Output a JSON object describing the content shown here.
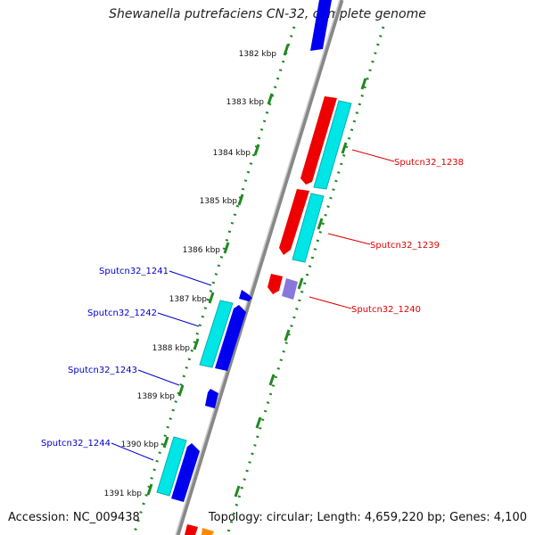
{
  "title": "Shewanella putrefaciens CN-32, complete genome",
  "footer": {
    "accession": "Accession: NC_009438",
    "stats": "Topology: circular; Length: 4,659,220 bp; Genes: 4,100"
  },
  "ticks": [
    "1382 kbp",
    "1383 kbp",
    "1384 kbp",
    "1385 kbp",
    "1386 kbp",
    "1387 kbp",
    "1388 kbp",
    "1389 kbp",
    "1390 kbp",
    "1391 kbp"
  ],
  "gene_labels_right": [
    "Sputcn32_1238",
    "Sputcn32_1239",
    "Sputcn32_1240"
  ],
  "gene_labels_left": [
    "Sputcn32_1241",
    "Sputcn32_1242",
    "Sputcn32_1243",
    "Sputcn32_1244"
  ],
  "colors": {
    "forward_cds": "#ff0000",
    "reverse_cds": "#0000ee",
    "gene": "#00e5e5",
    "other": "#8877dd",
    "rna": "#ff8800",
    "backbone": "#888888",
    "gc": "#228822",
    "label_right": "#dd0000",
    "label_left": "#0000cc"
  }
}
